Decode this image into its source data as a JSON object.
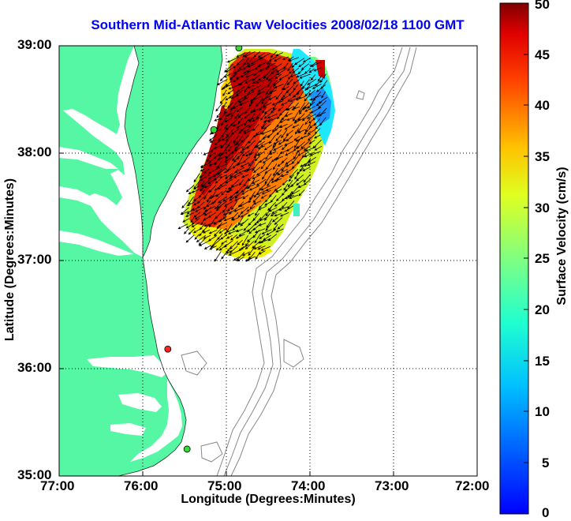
{
  "title": "Southern Mid-Atlantic Raw Velocities 2008/02/18 1100 GMT",
  "x_axis": {
    "label": "Longitude (Degrees:Minutes)",
    "ticks": [
      "77:00",
      "76:00",
      "75:00",
      "74:00",
      "73:00",
      "72:00"
    ],
    "range_deg_west": [
      77,
      72
    ]
  },
  "y_axis": {
    "label": "Latitude (Degrees:Minutes)",
    "ticks": [
      "39:00",
      "38:00",
      "37:00",
      "36:00",
      "35:00"
    ],
    "range_deg_north": [
      35,
      39
    ]
  },
  "colorbar": {
    "label": "Surface Velocity (cm/s)",
    "ticks": [
      "50",
      "45",
      "40",
      "35",
      "30",
      "25",
      "20",
      "15",
      "10",
      "5",
      "0"
    ],
    "range": [
      0,
      50
    ],
    "colormap": "jet"
  },
  "colors": {
    "land": "#55f7a5",
    "ocean": "#ffffff",
    "title": "#0000ee",
    "bathymetry": "#888888",
    "station_ok": "#33dd33",
    "station_down": "#ff2222"
  },
  "stations": [
    {
      "lon": 74.85,
      "lat": 38.98,
      "status": "ok"
    },
    {
      "lon": 75.15,
      "lat": 38.22,
      "status": "ok"
    },
    {
      "lon": 75.7,
      "lat": 36.18,
      "status": "down"
    },
    {
      "lon": 75.47,
      "lat": 35.25,
      "status": "ok"
    }
  ],
  "grid": "dotted",
  "chart_data": {
    "type": "heatmap",
    "title": "Southern Mid-Atlantic Raw Velocities 2008/02/18 1100 GMT",
    "xlabel": "Longitude (Degrees:Minutes)",
    "ylabel": "Latitude (Degrees:Minutes)",
    "xlim": [
      77,
      72
    ],
    "ylim": [
      35,
      39
    ],
    "value_label": "Surface Velocity (cm/s)",
    "vlim": [
      0,
      50
    ],
    "vector_direction": "southwest"
  }
}
